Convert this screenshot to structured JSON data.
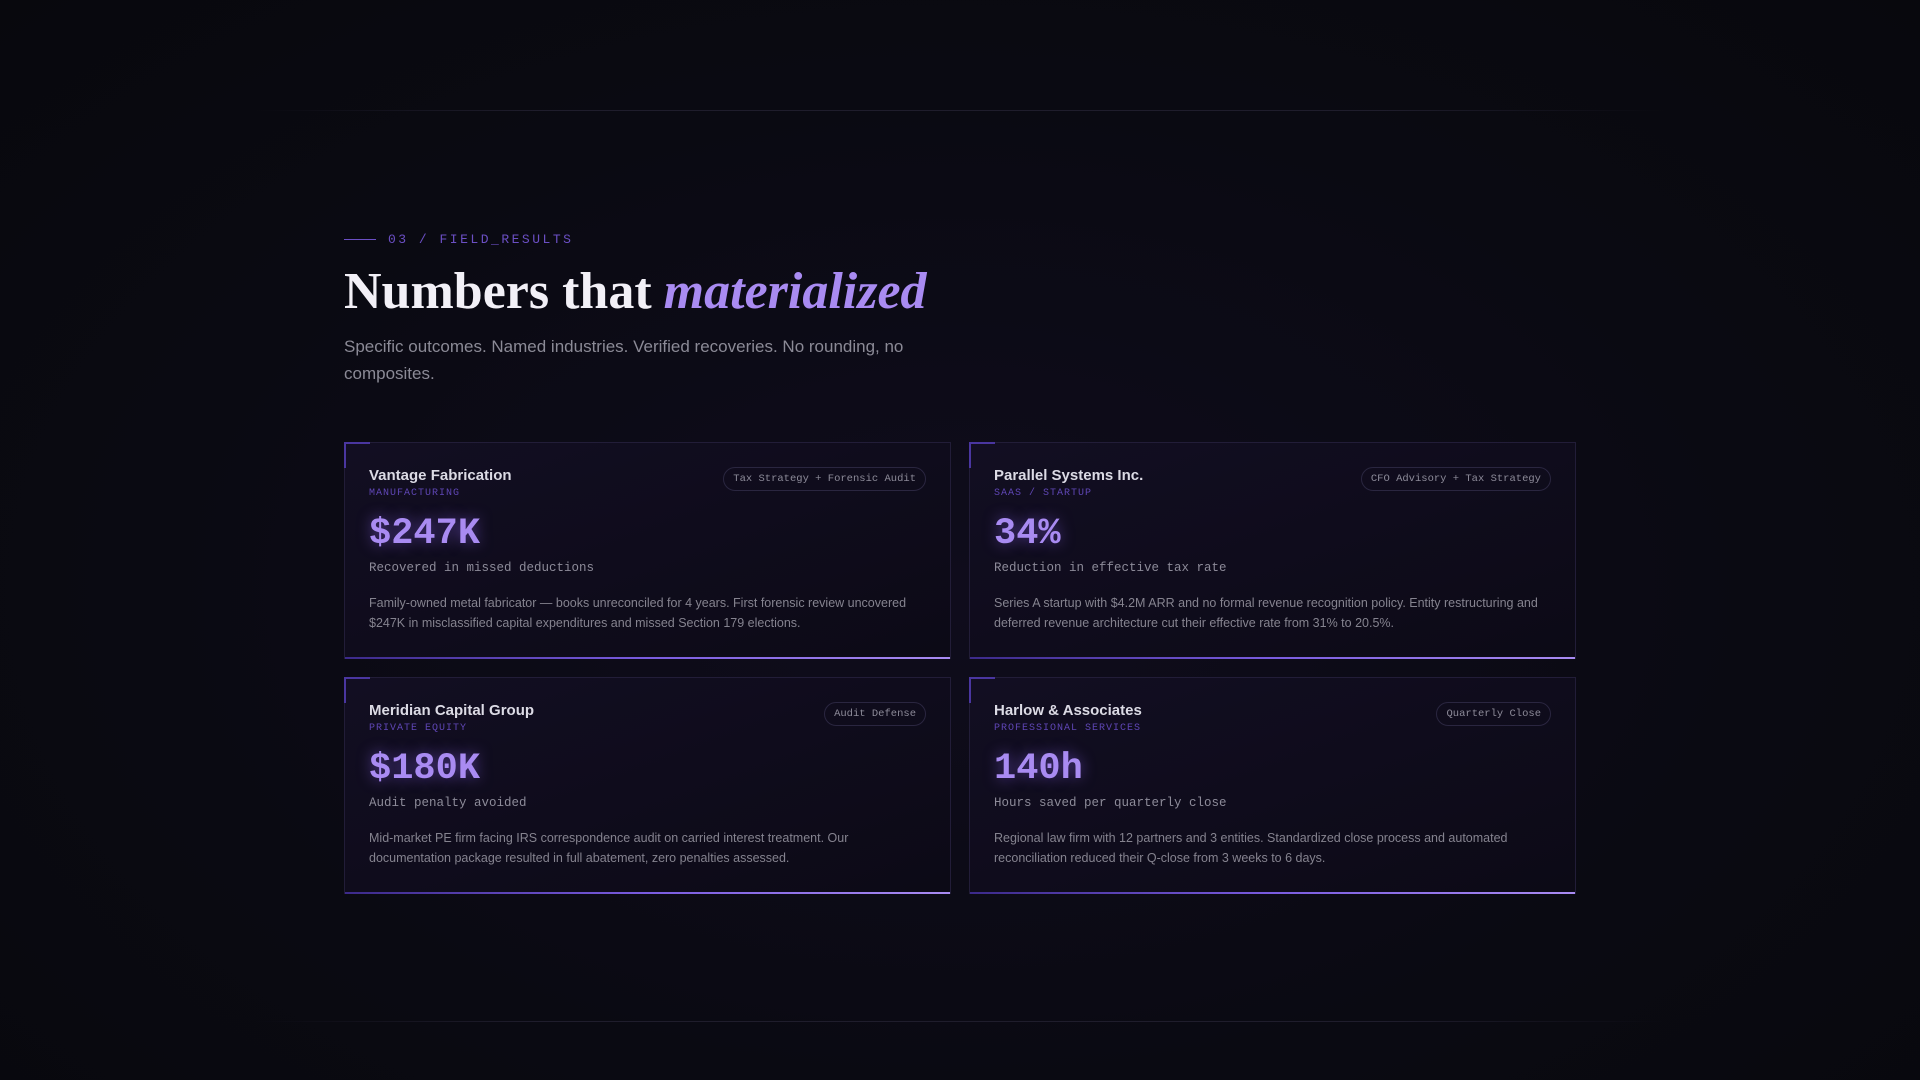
{
  "section": {
    "eyebrow": "03 / FIELD_RESULTS",
    "title": "Numbers that",
    "title_emphasis": "materialized",
    "subtitle": "Specific outcomes. Named industries. Verified recoveries. No rounding, no composites."
  },
  "cards": [
    {
      "name": "Vantage Fabrication",
      "industry": "MANUFACTURING",
      "tag": "Tax Strategy + Forensic Audit",
      "metric": "$247K",
      "metric_label": "Recovered in missed deductions",
      "description": "Family-owned metal fabricator — books unreconciled for 4 years. First forensic review uncovered $247K in misclassified capital expenditures and missed Section 179 elections."
    },
    {
      "name": "Parallel Systems Inc.",
      "industry": "SAAS / STARTUP",
      "tag": "CFO Advisory + Tax Strategy",
      "metric": "34%",
      "metric_label": "Reduction in effective tax rate",
      "description": "Series A startup with $4.2M ARR and no formal revenue recognition policy. Entity restructuring and deferred revenue architecture cut their effective rate from 31% to 20.5%."
    },
    {
      "name": "Meridian Capital Group",
      "industry": "PRIVATE EQUITY",
      "tag": "Audit Defense",
      "metric": "$180K",
      "metric_label": "Audit penalty avoided",
      "description": "Mid-market PE firm facing IRS correspondence audit on carried interest treatment. Our documentation package resulted in full abatement, zero penalties assessed."
    },
    {
      "name": "Harlow & Associates",
      "industry": "PROFESSIONAL SERVICES",
      "tag": "Quarterly Close",
      "metric": "140h",
      "metric_label": "Hours saved per quarterly close",
      "description": "Regional law firm with 12 partners and 3 entities. Standardized close process and automated reconciliation reduced their Q-close from 3 weeks to 6 days."
    }
  ]
}
